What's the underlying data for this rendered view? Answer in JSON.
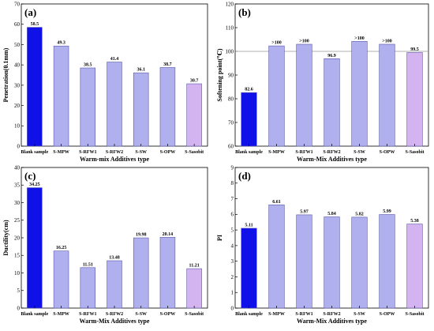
{
  "colors": {
    "blank_fill": "#1010e8",
    "additive_fill": "#b0b0ee",
    "sasobit_fill": "#d4b4f0",
    "bar_stroke": "#5858a8",
    "reference_line": "#999999"
  },
  "chart_data": [
    {
      "type": "bar",
      "panel_label": "(a)",
      "title": "",
      "xlabel": "Warm-mix Additives type",
      "ylabel": "Penetration(0.1mm)",
      "ylim": [
        0,
        70
      ],
      "yticks": [
        0,
        10,
        20,
        30,
        40,
        50,
        60,
        70
      ],
      "categories": [
        "Blank sample",
        "S-MPW",
        "S-RFW1",
        "S-RFW2",
        "S-SW",
        "S-OPW",
        "S-Sasobit"
      ],
      "values": [
        58.5,
        49.3,
        38.5,
        41.4,
        36.1,
        38.7,
        30.7
      ],
      "value_labels": [
        "58.5",
        "49.3",
        "38.5",
        "41.4",
        "36.1",
        "38.7",
        "30.7"
      ],
      "grid": false
    },
    {
      "type": "bar",
      "panel_label": "(b)",
      "title": "",
      "xlabel": "Warm-Mix Additives type",
      "ylabel": "Softening point(℃)",
      "ylim": [
        60,
        120
      ],
      "yticks": [
        60,
        70,
        80,
        90,
        100,
        110,
        120
      ],
      "categories": [
        "Blank sample",
        "S-MPW",
        "S-RFW1",
        "S-RFW2",
        "S-SW",
        "S-OPW",
        "S-Sasobit"
      ],
      "values": [
        82.6,
        102.3,
        103,
        96.9,
        104.2,
        103,
        99.5
      ],
      "value_labels": [
        "82.6",
        ">100",
        ">100",
        "96.9",
        ">100",
        ">100",
        "99.5"
      ],
      "reference_line": 100,
      "grid": false
    },
    {
      "type": "bar",
      "panel_label": "(c)",
      "title": "",
      "xlabel": "Warm-Mix Additives type",
      "ylabel": "Ductility(cm)",
      "ylim": [
        0,
        40
      ],
      "yticks": [
        0,
        5,
        10,
        15,
        20,
        25,
        30,
        35,
        40
      ],
      "categories": [
        "Blank sample",
        "S-MPW",
        "S-RFW1",
        "S-RFW2",
        "S-SW",
        "S-OPW",
        "S-Sasobit"
      ],
      "values": [
        34.25,
        16.25,
        11.51,
        13.48,
        19.98,
        20.14,
        11.21
      ],
      "value_labels": [
        "34.25",
        "16.25",
        "11.51",
        "13.48",
        "19.98",
        "20.14",
        "11.21"
      ],
      "grid": false
    },
    {
      "type": "bar",
      "panel_label": "(d)",
      "title": "",
      "xlabel": "Warm-Mix Additives type",
      "ylabel": "PI",
      "ylim": [
        0,
        9
      ],
      "yticks": [
        0,
        1,
        2,
        3,
        4,
        5,
        6,
        7,
        8,
        9
      ],
      "categories": [
        "Blank sample",
        "S-MPW",
        "S-RFW1",
        "S-RFW2",
        "S-SW",
        "S-OPW",
        "S-Sasobit"
      ],
      "values": [
        5.11,
        6.61,
        5.97,
        5.84,
        5.82,
        5.99,
        5.38
      ],
      "value_labels": [
        "5.11",
        "6.61",
        "5.97",
        "5.84",
        "5.82",
        "5.99",
        "5.38"
      ],
      "grid": false
    }
  ]
}
